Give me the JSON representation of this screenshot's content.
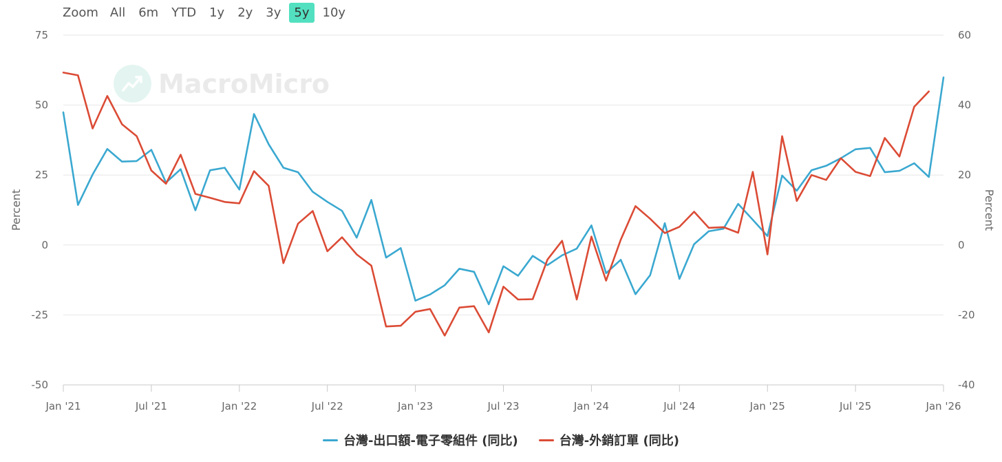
{
  "toolbar": {
    "zoom_label": "Zoom",
    "ranges": [
      "All",
      "6m",
      "YTD",
      "1y",
      "2y",
      "3y",
      "5y",
      "10y"
    ],
    "active_range": "5y"
  },
  "watermark": {
    "text": "MacroMicro",
    "icon": "chart-line-icon"
  },
  "colors": {
    "series1": "#3aa8d0",
    "series2": "#db4b35",
    "grid": "#e6e6e6",
    "active_range": "#52e0c0"
  },
  "chart_data": {
    "type": "line",
    "title": "",
    "x_ticks": [
      "Jan '21",
      "Jul '21",
      "Jan '22",
      "Jul '22",
      "Jan '23",
      "Jul '23",
      "Jan '24",
      "Jul '24",
      "Jan '25",
      "Jul '25",
      "Jan '26"
    ],
    "x_start": "2021-01",
    "x_end": "2026-01",
    "y_left": {
      "label": "Percent",
      "min": -50,
      "max": 75,
      "ticks": [
        "75",
        "50",
        "25",
        "0",
        "-25",
        "-50"
      ]
    },
    "y_right": {
      "label": "Percent",
      "min": -40,
      "max": 60,
      "ticks": [
        "60",
        "40",
        "20",
        "0",
        "-20",
        "-40"
      ]
    },
    "grid": true,
    "legend_position": "bottom",
    "series": [
      {
        "name": "台灣-出口額-電子零組件 (同比)",
        "axis": "left",
        "start": "2021-01",
        "values": [
          47.4,
          14.3,
          25.2,
          34.3,
          29.8,
          30.0,
          34.0,
          22.3,
          27.1,
          12.4,
          26.7,
          27.6,
          19.8,
          46.8,
          36.0,
          27.6,
          26.0,
          19.0,
          15.4,
          12.2,
          2.6,
          16.1,
          -4.5,
          -1.1,
          -19.9,
          -17.7,
          -14.4,
          -8.5,
          -9.6,
          -21.2,
          -7.6,
          -11.0,
          -3.9,
          -7.2,
          -3.7,
          -1.3,
          7.0,
          -10.1,
          -5.3,
          -17.6,
          -10.8,
          7.8,
          -12.1,
          0.3,
          4.9,
          5.8,
          14.7,
          9.0,
          3.2,
          24.8,
          19.4,
          26.7,
          28.3,
          31.0,
          34.2,
          34.7,
          26.0,
          26.5,
          29.2,
          24.3,
          59.9
        ]
      },
      {
        "name": "台灣-外銷訂單 (同比)",
        "axis": "right",
        "start": "2021-01",
        "values": [
          49.3,
          48.5,
          33.3,
          42.6,
          34.5,
          31.1,
          21.3,
          17.5,
          25.8,
          14.6,
          13.5,
          12.3,
          11.9,
          21.1,
          16.9,
          -5.2,
          6.1,
          9.7,
          -1.8,
          2.2,
          -2.7,
          -5.9,
          -23.3,
          -23.1,
          -19.1,
          -18.3,
          -25.9,
          -17.9,
          -17.5,
          -25.0,
          -11.9,
          -15.6,
          -15.5,
          -4.2,
          1.2,
          -15.6,
          2.4,
          -10.2,
          1.5,
          11.1,
          7.5,
          3.4,
          5.2,
          9.5,
          4.9,
          5.1,
          3.5,
          20.9,
          -2.7,
          31.1,
          12.6,
          20.0,
          18.6,
          24.8,
          20.9,
          19.7,
          30.6,
          25.3,
          39.5,
          43.9
        ]
      }
    ]
  }
}
